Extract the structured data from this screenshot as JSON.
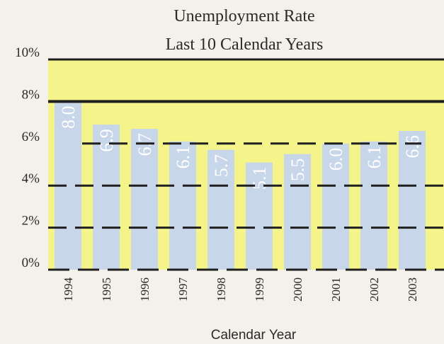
{
  "chart_data": {
    "type": "bar",
    "title_lines": [
      "Unemployment Rate",
      "Last 10 Calendar Years"
    ],
    "xlabel": "Calendar Year",
    "ylabel": "",
    "categories": [
      "1994",
      "1995",
      "1996",
      "1997",
      "1998",
      "1999",
      "2000",
      "2001",
      "2002",
      "2003"
    ],
    "values": [
      8.0,
      6.9,
      6.7,
      6.1,
      5.7,
      5.1,
      5.5,
      6.0,
      6.1,
      6.6
    ],
    "data_labels": [
      "8.0",
      "6.9",
      "6.7",
      "6.1",
      "5.7",
      "5.1",
      "5.5",
      "6.0",
      "6.1",
      "6.6"
    ],
    "ylim": [
      0,
      10
    ],
    "yticks": [
      0,
      2,
      4,
      6,
      8,
      10
    ],
    "ytick_labels": [
      "0%",
      "2%",
      "4%",
      "6%",
      "8%",
      "10%"
    ],
    "threshold_lines": [
      6,
      8
    ],
    "grid": true,
    "colors": {
      "background_band": "#f4f48a",
      "bar": "#c7d6e9",
      "gridline": "#1f1f1f",
      "data_label": "#ffffff"
    }
  }
}
